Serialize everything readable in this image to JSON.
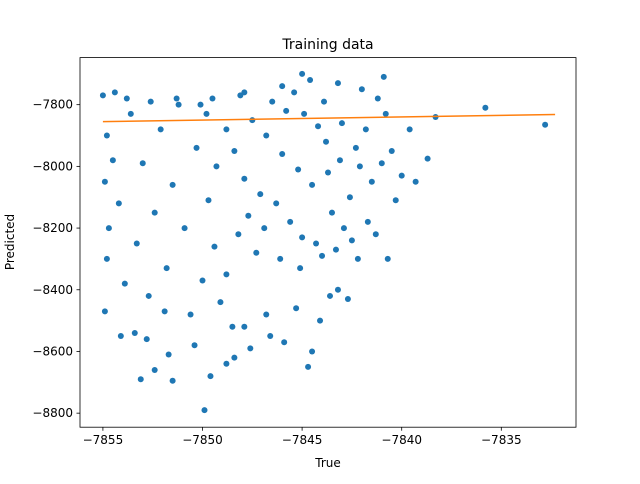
{
  "chart_data": {
    "type": "scatter",
    "title": "Training data",
    "x_label": "True",
    "y_label": "Predicted",
    "xlim": [
      -7856.15,
      -7831.25
    ],
    "ylim": [
      -8845.5,
      -7647.4
    ],
    "xticks": [
      {
        "value": -7855,
        "label": "−7855"
      },
      {
        "value": -7850,
        "label": "−7850"
      },
      {
        "value": -7845,
        "label": "−7845"
      },
      {
        "value": -7840,
        "label": "−7840"
      },
      {
        "value": -7835,
        "label": "−7835"
      }
    ],
    "yticks": [
      {
        "value": -7800,
        "label": "−7800"
      },
      {
        "value": -8000,
        "label": "−8000"
      },
      {
        "value": -8200,
        "label": "−8200"
      },
      {
        "value": -8400,
        "label": "−8400"
      },
      {
        "value": -8600,
        "label": "−8600"
      },
      {
        "value": -8800,
        "label": "−8800"
      }
    ],
    "points": {
      "color": "#1f77b4",
      "x": [
        -7847.5,
        -7846.8,
        -7846.0,
        -7845.2,
        -7844.5,
        -7843.8,
        -7843.1,
        -7842.6,
        -7847.9,
        -7846.3,
        -7845.6,
        -7844.9,
        -7844.2,
        -7843.5,
        -7842.9,
        -7848.4,
        -7847.1,
        -7846.5,
        -7845.8,
        -7845.0,
        -7844.3,
        -7843.7,
        -7843.0,
        -7842.3,
        -7848.8,
        -7847.7,
        -7846.9,
        -7845.4,
        -7844.6,
        -7843.9,
        -7842.1,
        -7841.8,
        -7841.5,
        -7849.3,
        -7849.8,
        -7848.2,
        -7847.3,
        -7846.1,
        -7845.1,
        -7844.0,
        -7843.3,
        -7842.5,
        -7841.7,
        -7855.0,
        -7854.8,
        -7854.9,
        -7854.7,
        -7854.8,
        -7854.9,
        -7854.5,
        -7854.2,
        -7853.9,
        -7853.6,
        -7853.3,
        -7853.0,
        -7852.7,
        -7852.4,
        -7852.1,
        -7851.8,
        -7851.5,
        -7851.2,
        -7850.9,
        -7850.6,
        -7850.3,
        -7850.0,
        -7849.7,
        -7849.4,
        -7849.1,
        -7848.8,
        -7848.5,
        -7848.1,
        -7853.4,
        -7852.8,
        -7851.9,
        -7854.4,
        -7853.8,
        -7852.6,
        -7851.3,
        -7850.1,
        -7853.1,
        -7851.5,
        -7849.9,
        -7851.7,
        -7849.6,
        -7848.8,
        -7848.4,
        -7847.6,
        -7846.6,
        -7845.9,
        -7845.3,
        -7844.7,
        -7844.5,
        -7844.1,
        -7843.6,
        -7843.2,
        -7842.7,
        -7842.2,
        -7846.8,
        -7847.9,
        -7850.4,
        -7852.4,
        -7854.1,
        -7846.0,
        -7845.0,
        -7843.2,
        -7842.0,
        -7840.9,
        -7847.9,
        -7849.5,
        -7841.2,
        -7840.8,
        -7840.5,
        -7840.3,
        -7840.0,
        -7839.3,
        -7839.6,
        -7838.7,
        -7838.3,
        -7835.8,
        -7832.8,
        -7841.0,
        -7841.3,
        -7840.7
      ],
      "y": [
        -7850,
        -7900,
        -7960,
        -8010,
        -8060,
        -7920,
        -7980,
        -8100,
        -8040,
        -8120,
        -8180,
        -7830,
        -7870,
        -8150,
        -8200,
        -7950,
        -8090,
        -7790,
        -7820,
        -8230,
        -8250,
        -8020,
        -7860,
        -7940,
        -7880,
        -8160,
        -8200,
        -7760,
        -7720,
        -7790,
        -8000,
        -7880,
        -8050,
        -8000,
        -7830,
        -8220,
        -8280,
        -8300,
        -8330,
        -8290,
        -8270,
        -8240,
        -8180,
        -7770,
        -7900,
        -8050,
        -8200,
        -8300,
        -8470,
        -7980,
        -8120,
        -8380,
        -7830,
        -8250,
        -7990,
        -8420,
        -8150,
        -7880,
        -8330,
        -8060,
        -7800,
        -8200,
        -8480,
        -7940,
        -8370,
        -8110,
        -8260,
        -8440,
        -8350,
        -8520,
        -7770,
        -8540,
        -8560,
        -8470,
        -7760,
        -7780,
        -7790,
        -7780,
        -7800,
        -8690,
        -8695,
        -8790,
        -8610,
        -8680,
        -8640,
        -8620,
        -8590,
        -8550,
        -8570,
        -8460,
        -8650,
        -8600,
        -8500,
        -8420,
        -8400,
        -8430,
        -8300,
        -8480,
        -8520,
        -8580,
        -8660,
        -8550,
        -7740,
        -7700,
        -7730,
        -7750,
        -7710,
        -7760,
        -7780,
        -7780,
        -7830,
        -7950,
        -8110,
        -8030,
        -8050,
        -7880,
        -7975,
        -7840,
        -7810,
        -7865,
        -7990,
        -8220,
        -8300
      ]
    },
    "fit_line": {
      "color": "#ff7f0e",
      "x": [
        -7855,
        -7832.3
      ],
      "y": [
        -7855,
        -7832
      ]
    }
  }
}
